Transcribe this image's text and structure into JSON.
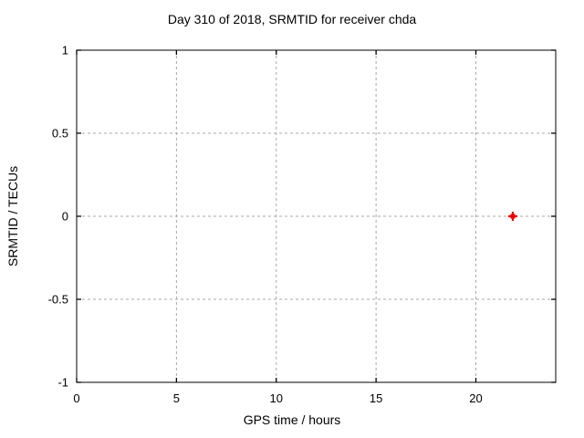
{
  "window": {
    "background": "#ffffff"
  },
  "chart_data": {
    "type": "scatter",
    "title": "Day 310 of 2018, SRMTID for receiver chda",
    "xlabel": "GPS time / hours",
    "ylabel": "SRMTID / TECUs",
    "xlim": [
      0,
      24
    ],
    "ylim": [
      -1,
      1
    ],
    "xticks": [
      0,
      5,
      10,
      15,
      20
    ],
    "xtick_labels": [
      "0",
      "5",
      "10",
      "15",
      "20"
    ],
    "yticks": [
      -1,
      -0.5,
      0,
      0.5,
      1
    ],
    "ytick_labels": [
      "-1",
      "-0.5",
      "0",
      "0.5",
      "1"
    ],
    "grid": true,
    "grid_style": "dashed",
    "legend_position": "none",
    "series": [
      {
        "name": "SRMTID",
        "marker": "bold-plus",
        "color": "#ee0000",
        "points": [
          {
            "x": 21.85,
            "y": 0.0
          }
        ]
      }
    ],
    "colors": {
      "axis": "#000000",
      "grid": "#a8a8a8",
      "text": "#000000",
      "background": "#ffffff"
    }
  }
}
